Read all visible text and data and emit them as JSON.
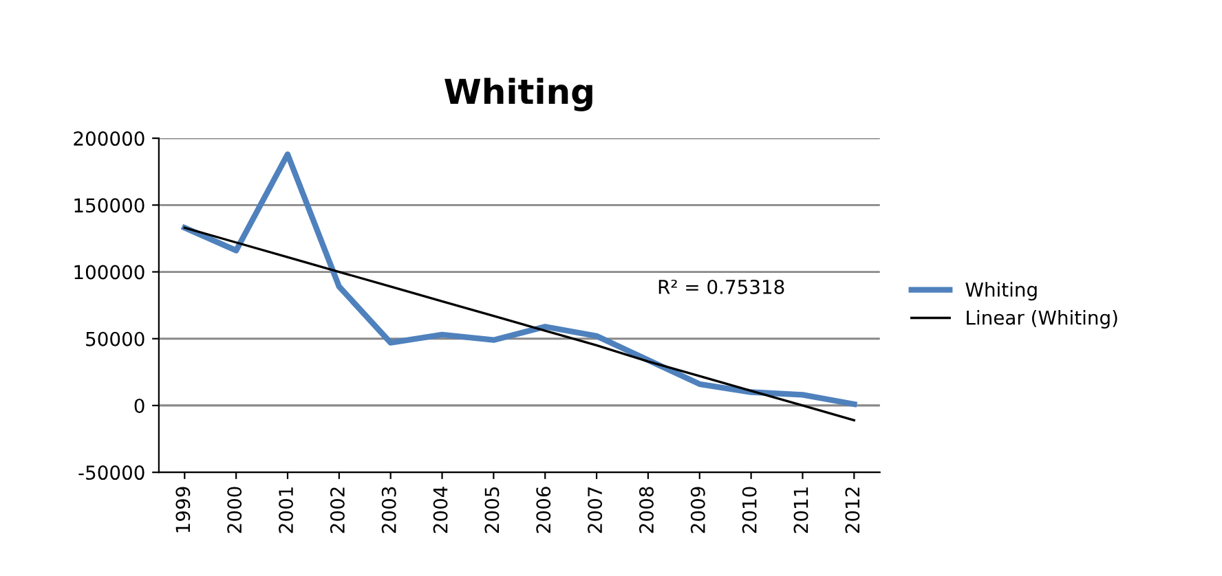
{
  "chart_data": {
    "type": "line",
    "title": "Whiting",
    "categories": [
      "1999",
      "2000",
      "2001",
      "2002",
      "2003",
      "2004",
      "2005",
      "2006",
      "2007",
      "2008",
      "2009",
      "2010",
      "2011",
      "2012"
    ],
    "series": [
      {
        "name": "Whiting",
        "color": "#4f81bd",
        "values": [
          133000,
          116000,
          188000,
          89000,
          47000,
          53000,
          49000,
          59000,
          52000,
          34000,
          16000,
          10000,
          8000,
          1000
        ]
      },
      {
        "name": "Linear (Whiting)",
        "type": "line",
        "color": "#000000",
        "values": [
          133000,
          122000,
          111000,
          100000,
          89000,
          78000,
          67000,
          56000,
          45000,
          33000,
          22000,
          11000,
          0,
          -11000
        ]
      }
    ],
    "ylim": [
      -50000,
      200000
    ],
    "yticks": [
      -50000,
      0,
      50000,
      100000,
      150000,
      200000
    ],
    "grid": "y",
    "legend": "right",
    "marker": "none",
    "line_style": "solid",
    "annotations": [
      "R² = 0.75318"
    ]
  }
}
